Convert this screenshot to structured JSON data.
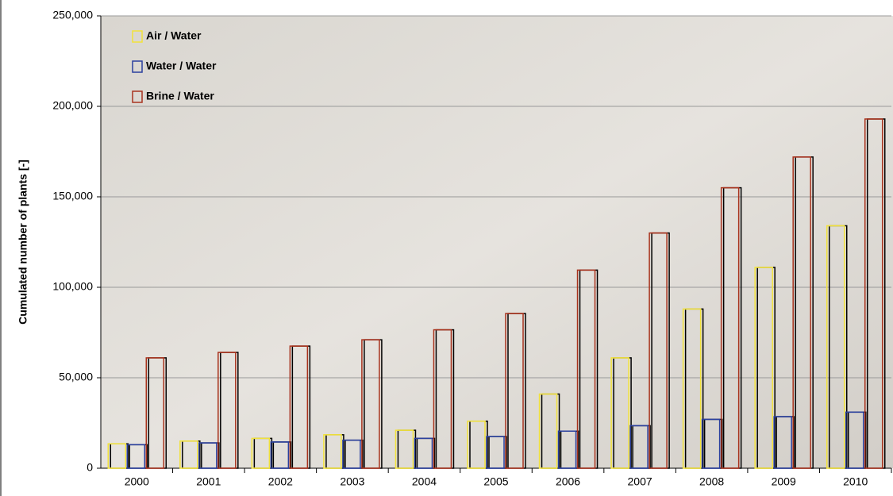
{
  "chart_data": {
    "type": "bar",
    "y_label": "Cumulated number of plants [-]",
    "categories": [
      "2000",
      "2001",
      "2002",
      "2003",
      "2004",
      "2005",
      "2006",
      "2007",
      "2008",
      "2009",
      "2010"
    ],
    "series": [
      {
        "name": "Air / Water",
        "color": "#f2e23a",
        "values": [
          13500,
          15000,
          16500,
          18500,
          21000,
          26000,
          41000,
          61000,
          88000,
          111000,
          134000
        ]
      },
      {
        "name": "Water / Water",
        "color": "#2b3f9e",
        "values": [
          13000,
          14000,
          14500,
          15500,
          16500,
          17500,
          20500,
          23500,
          27000,
          28500,
          31000
        ]
      },
      {
        "name": "Brine / Water",
        "color": "#a8321f",
        "values": [
          61000,
          64000,
          67500,
          71000,
          76500,
          85500,
          109500,
          130000,
          155000,
          172000,
          193000
        ]
      }
    ],
    "ylim": [
      0,
      250000
    ],
    "yticks": [
      0,
      {
        "value": 50000,
        "label": "50,000"
      },
      {
        "value": 100000,
        "label": "100,000"
      },
      {
        "value": 150000,
        "label": "150,000"
      },
      {
        "value": 200000,
        "label": "200,000"
      },
      {
        "value": 250000,
        "label": "250,000"
      }
    ],
    "grid": true,
    "legend": "top-left"
  }
}
